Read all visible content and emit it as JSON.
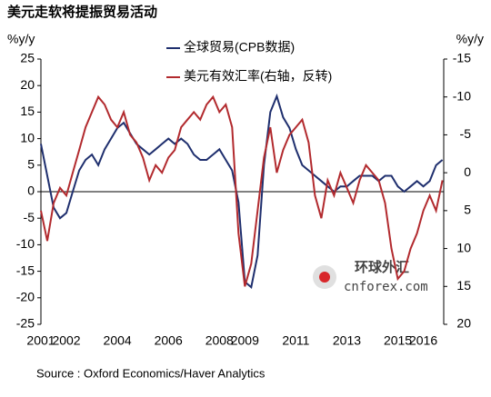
{
  "chart_data": {
    "type": "line",
    "title": "美元走软将提振贸易活动",
    "y_unit_label": "%y/y",
    "y2_unit_label": "%y/y",
    "source": "Source : Oxford Economics/Haver Analytics",
    "watermark": [
      "环球外汇",
      "cnforex.com"
    ],
    "x": [
      2001.0,
      2001.25,
      2001.5,
      2001.75,
      2002.0,
      2002.25,
      2002.5,
      2002.75,
      2003.0,
      2003.25,
      2003.5,
      2003.75,
      2004.0,
      2004.25,
      2004.5,
      2004.75,
      2005.0,
      2005.25,
      2005.5,
      2005.75,
      2006.0,
      2006.25,
      2006.5,
      2006.75,
      2007.0,
      2007.25,
      2007.5,
      2007.75,
      2008.0,
      2008.25,
      2008.5,
      2008.75,
      2009.0,
      2009.25,
      2009.5,
      2009.75,
      2010.0,
      2010.25,
      2010.5,
      2010.75,
      2011.0,
      2011.25,
      2011.5,
      2011.75,
      2012.0,
      2012.25,
      2012.5,
      2012.75,
      2013.0,
      2013.25,
      2013.5,
      2013.75,
      2014.0,
      2014.25,
      2014.5,
      2014.75,
      2015.0,
      2015.25,
      2015.5,
      2015.75,
      2016.0,
      2016.25,
      2016.5,
      2016.75
    ],
    "xlim": [
      2001,
      2016.8
    ],
    "xticks": [
      2001,
      2002,
      2004,
      2006,
      2008,
      2009,
      2011,
      2013,
      2015,
      2016
    ],
    "ylim": [
      -25,
      25
    ],
    "yticks": [
      25,
      20,
      15,
      10,
      5,
      0,
      -5,
      -10,
      -15,
      -20,
      -25
    ],
    "y2lim": [
      20,
      -15
    ],
    "y2ticks": [
      -15,
      -10,
      -5,
      0,
      5,
      10,
      15,
      20
    ],
    "series": [
      {
        "name": "全球贸易(CPB数据)",
        "color": "#1f2f6e",
        "values": [
          9,
          3,
          -3,
          -5,
          -4,
          0,
          4,
          6,
          7,
          5,
          8,
          10,
          12,
          13,
          11,
          9,
          8,
          7,
          8,
          9,
          10,
          9,
          10,
          9,
          7,
          6,
          6,
          7,
          8,
          6,
          4,
          -2,
          -17,
          -18,
          -12,
          5,
          15,
          18,
          14,
          12,
          8,
          5,
          4,
          3,
          2,
          1,
          0,
          1,
          1,
          2,
          3,
          3,
          3,
          2,
          3,
          3,
          1,
          0,
          1,
          2,
          1,
          2,
          5,
          6
        ]
      },
      {
        "name": "美元有效汇率(右轴，反转)",
        "color": "#b22a2e",
        "axis": "y2",
        "values": [
          5,
          9,
          4,
          2,
          3,
          0,
          -3,
          -6,
          -8,
          -10,
          -9,
          -7,
          -6,
          -8,
          -5,
          -4,
          -2,
          1,
          -1,
          0,
          -2,
          -3,
          -6,
          -7,
          -8,
          -7,
          -9,
          -10,
          -8,
          -9,
          -6,
          8,
          15,
          12,
          5,
          -2,
          -6,
          0,
          -3,
          -5,
          -6,
          -7,
          -4,
          3,
          6,
          1,
          3,
          0,
          2,
          4,
          1,
          -1,
          0,
          1,
          4,
          10,
          14,
          13,
          10,
          8,
          5,
          3,
          5,
          1
        ]
      }
    ]
  }
}
